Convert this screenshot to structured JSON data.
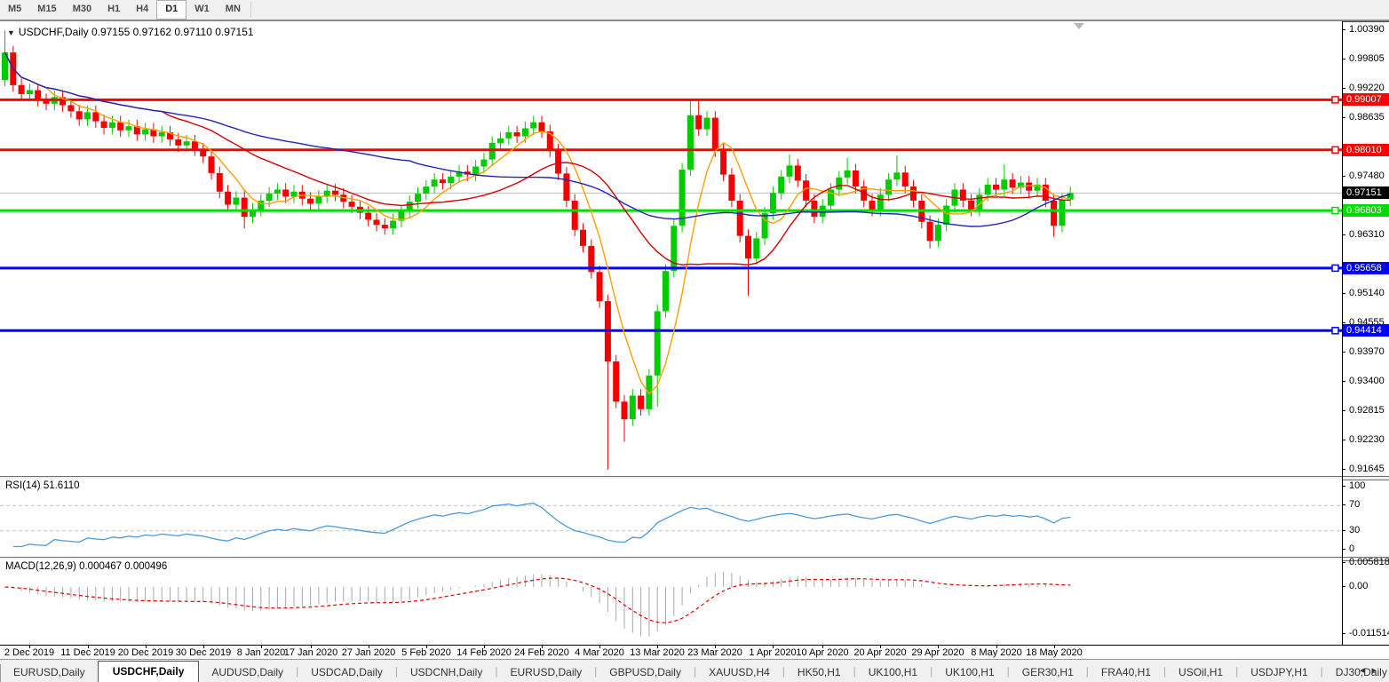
{
  "icons": {
    "dropdown": "▼",
    "tab_scroll_left": "◂",
    "tab_scroll_right": "▸"
  },
  "toolbar": {
    "timeframes": [
      {
        "label": "M5",
        "active": false
      },
      {
        "label": "M15",
        "active": false
      },
      {
        "label": "M30",
        "active": false
      },
      {
        "label": "H1",
        "active": false
      },
      {
        "label": "H4",
        "active": false
      },
      {
        "label": "D1",
        "active": true
      },
      {
        "label": "W1",
        "active": false
      },
      {
        "label": "MN",
        "active": false
      }
    ]
  },
  "chart": {
    "symbol": "USDCHF,Daily",
    "ohlc": "0.97155 0.97162 0.97110 0.97151",
    "current_price": {
      "value": 0.97151,
      "label": "0.97151",
      "tag_color": "#000000",
      "line_color": "#bdbdbd"
    },
    "price_ticks": [
      {
        "label": "1.00390",
        "value": 1.0039
      },
      {
        "label": "0.99805",
        "value": 0.99805
      },
      {
        "label": "0.99220",
        "value": 0.9922
      },
      {
        "label": "0.98635",
        "value": 0.98635
      },
      {
        "label": "0.97480",
        "value": 0.9748
      },
      {
        "label": "0.96310",
        "value": 0.9631
      },
      {
        "label": "0.95140",
        "value": 0.9514
      },
      {
        "label": "0.94555",
        "value": 0.94555
      },
      {
        "label": "0.93970",
        "value": 0.9397
      },
      {
        "label": "0.93400",
        "value": 0.934
      },
      {
        "label": "0.92815",
        "value": 0.92815
      },
      {
        "label": "0.92230",
        "value": 0.9223
      },
      {
        "label": "0.91645",
        "value": 0.91645
      }
    ],
    "level_lines": [
      {
        "label": "0.99007",
        "price": 0.99007,
        "color": "#ff0000"
      },
      {
        "label": "0.98010",
        "price": 0.9801,
        "color": "#ff0000"
      },
      {
        "label": "0.96803",
        "price": 0.96803,
        "color": "#00dd00"
      },
      {
        "label": "0.95658",
        "price": 0.95658,
        "color": "#0000ff"
      },
      {
        "label": "0.94414",
        "price": 0.94414,
        "color": "#0000ff"
      }
    ],
    "date_ticks": [
      {
        "label": "2 Dec 2019",
        "bar": 3
      },
      {
        "label": "11 Dec 2019",
        "bar": 10
      },
      {
        "label": "20 Dec 2019",
        "bar": 17
      },
      {
        "label": "30 Dec 2019",
        "bar": 24
      },
      {
        "label": "8 Jan 2020",
        "bar": 31
      },
      {
        "label": "17 Jan 2020",
        "bar": 37
      },
      {
        "label": "27 Jan 2020",
        "bar": 44
      },
      {
        "label": "5 Feb 2020",
        "bar": 51
      },
      {
        "label": "14 Feb 2020",
        "bar": 58
      },
      {
        "label": "24 Feb 2020",
        "bar": 65
      },
      {
        "label": "4 Mar 2020",
        "bar": 72
      },
      {
        "label": "13 Mar 2020",
        "bar": 79
      },
      {
        "label": "23 Mar 2020",
        "bar": 86
      },
      {
        "label": "1 Apr 2020",
        "bar": 93
      },
      {
        "label": "10 Apr 2020",
        "bar": 99
      },
      {
        "label": "20 Apr 2020",
        "bar": 106
      },
      {
        "label": "29 Apr 2020",
        "bar": 113
      },
      {
        "label": "8 May 2020",
        "bar": 120
      },
      {
        "label": "18 May 2020",
        "bar": 127
      }
    ],
    "bars": {
      "first_open": 0.994,
      "default_wick": 0.0013,
      "up_color": "#00cc00",
      "down_color": "#f40000",
      "closes": [
        0.9995,
        0.993,
        0.9912,
        0.992,
        0.99,
        0.9893,
        0.9906,
        0.989,
        0.9878,
        0.9862,
        0.9876,
        0.9858,
        0.9845,
        0.9856,
        0.984,
        0.9848,
        0.9832,
        0.9842,
        0.9828,
        0.9836,
        0.9822,
        0.981,
        0.9818,
        0.9802,
        0.9788,
        0.9755,
        0.9718,
        0.9692,
        0.9706,
        0.9668,
        0.9682,
        0.97,
        0.9714,
        0.9722,
        0.9708,
        0.9718,
        0.9704,
        0.9694,
        0.9708,
        0.972,
        0.9712,
        0.9698,
        0.9688,
        0.9676,
        0.9662,
        0.9652,
        0.9645,
        0.966,
        0.9678,
        0.9698,
        0.9714,
        0.9728,
        0.9742,
        0.9735,
        0.9748,
        0.9758,
        0.9752,
        0.9768,
        0.9782,
        0.9815,
        0.9824,
        0.9836,
        0.9828,
        0.9844,
        0.9856,
        0.9838,
        0.98,
        0.9754,
        0.97,
        0.9642,
        0.961,
        0.9558,
        0.95,
        0.938,
        0.93,
        0.9265,
        0.9312,
        0.9285,
        0.9352,
        0.948,
        0.956,
        0.965,
        0.9762,
        0.987,
        0.9842,
        0.9865,
        0.98,
        0.9752,
        0.97,
        0.963,
        0.9585,
        0.9625,
        0.9675,
        0.9715,
        0.9748,
        0.977,
        0.974,
        0.97,
        0.9668,
        0.969,
        0.9722,
        0.9746,
        0.976,
        0.9728,
        0.97,
        0.9682,
        0.9712,
        0.9742,
        0.9756,
        0.9728,
        0.97,
        0.9658,
        0.962,
        0.9652,
        0.969,
        0.9722,
        0.97,
        0.9682,
        0.9712,
        0.9732,
        0.9722,
        0.9742,
        0.9726,
        0.9736,
        0.972,
        0.9732,
        0.97,
        0.965,
        0.9702,
        0.97151
      ],
      "wick_overrides": {
        "0": {
          "h": 1.0039,
          "l": 0.9928
        },
        "29": {
          "l": 0.9645
        },
        "73": {
          "l": 0.91645
        },
        "75": {
          "l": 0.922
        },
        "79": {
          "l": 0.929
        },
        "83": {
          "h": 0.99
        },
        "84": {
          "h": 0.99007
        },
        "90": {
          "l": 0.9511
        },
        "95": {
          "h": 0.9792
        },
        "102": {
          "h": 0.9785
        },
        "108": {
          "h": 0.979
        },
        "112": {
          "l": 0.9605
        },
        "121": {
          "h": 0.9772
        },
        "127": {
          "l": 0.9628
        }
      }
    },
    "moving_averages": [
      {
        "name": "ma-fast",
        "period": 6,
        "color": "#ff9f00"
      },
      {
        "name": "ma-medium",
        "period": 20,
        "color": "#d40000"
      },
      {
        "name": "ma-slow",
        "period": 50,
        "color": "#2525b5"
      }
    ]
  },
  "rsi": {
    "label": "RSI(14) 51.6110",
    "period": 14,
    "line_color": "#4a9add",
    "levels": [
      70,
      30
    ],
    "ticks": [
      {
        "label": "100",
        "value": 100
      },
      {
        "label": "70",
        "value": 70
      },
      {
        "label": "30",
        "value": 30
      },
      {
        "label": "0",
        "value": 0
      }
    ]
  },
  "macd": {
    "label": "MACD(12,26,9) 0.000467 0.000496",
    "fast": 12,
    "slow": 26,
    "signal": 9,
    "hist_color": "#a8a8a8",
    "signal_color": "#e00000",
    "ticks": [
      {
        "label": "0.005818",
        "value": 0.005818
      },
      {
        "label": "0.00",
        "value": 0.0
      },
      {
        "label": "-0.011514",
        "value": -0.011514
      }
    ]
  },
  "tabs": [
    {
      "label": "EURUSD,Daily",
      "active": false
    },
    {
      "label": "USDCHF,Daily",
      "active": true
    },
    {
      "label": "AUDUSD,Daily",
      "active": false
    },
    {
      "label": "USDCAD,Daily",
      "active": false
    },
    {
      "label": "USDCNH,Daily",
      "active": false
    },
    {
      "label": "EURUSD,Daily",
      "active": false
    },
    {
      "label": "GBPUSD,Daily",
      "active": false
    },
    {
      "label": "XAUUSD,H4",
      "active": false
    },
    {
      "label": "HK50,H1",
      "active": false
    },
    {
      "label": "UK100,H1",
      "active": false
    },
    {
      "label": "UK100,H1",
      "active": false
    },
    {
      "label": "GER30,H1",
      "active": false
    },
    {
      "label": "FRA40,H1",
      "active": false
    },
    {
      "label": "USOil,H1",
      "active": false
    },
    {
      "label": "USDJPY,H1",
      "active": false
    },
    {
      "label": "DJ30,Daily",
      "active": false
    }
  ]
}
